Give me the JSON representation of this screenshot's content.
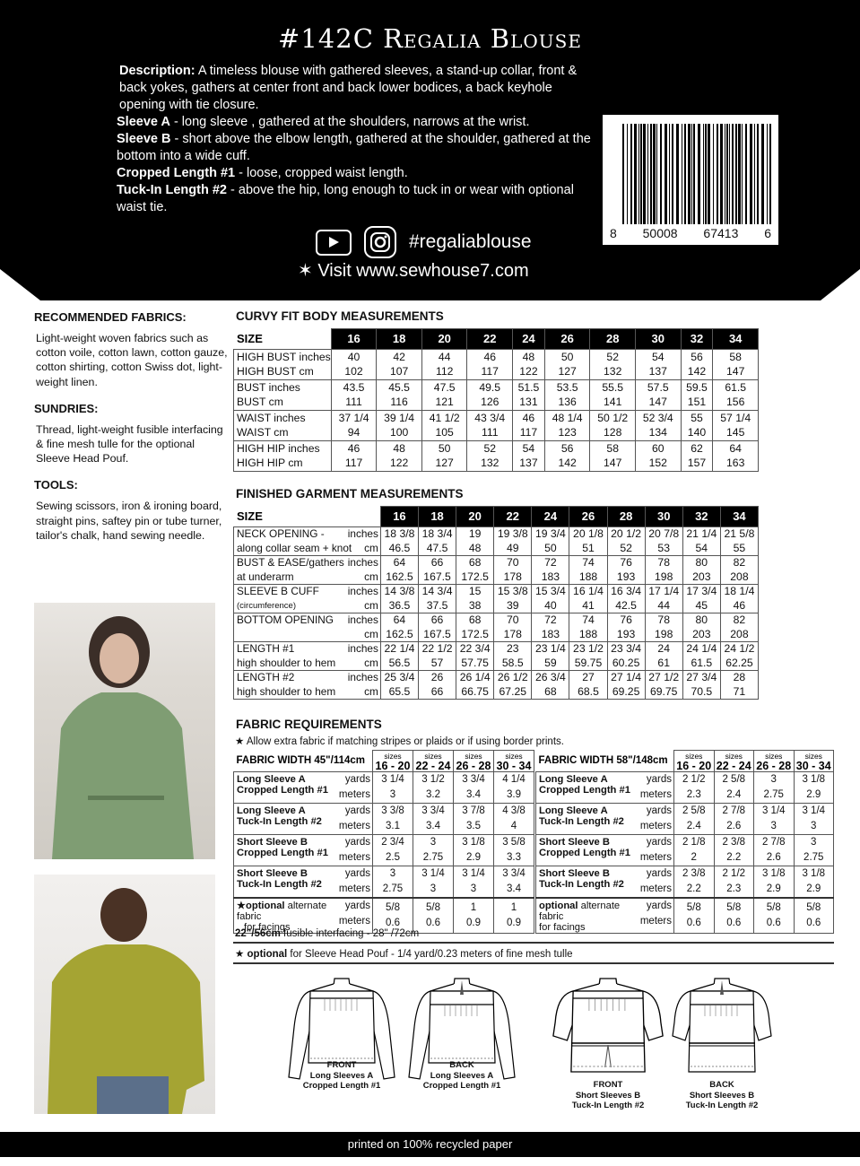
{
  "header": {
    "title": "#142C Regalia Blouse",
    "description": [
      {
        "bold": "Description:",
        "text": " A timeless blouse with gathered sleeves, a stand-up collar, front & back yokes, gathers at center front and back lower bodices, a back keyhole opening with tie closure."
      },
      {
        "bold": "Sleeve A",
        "text": " - long sleeve , gathered at the shoulders, narrows at the wrist."
      },
      {
        "bold": "Sleeve B",
        "text": " - short above the elbow length, gathered at the shoulder, gathered at the bottom into a wide cuff."
      },
      {
        "bold": "Cropped Length #1",
        "text": " - loose, cropped waist length."
      },
      {
        "bold": "Tuck-In Length #2",
        "text": " - above the hip, long enough to tuck in or wear with optional waist tie."
      }
    ],
    "hashtag": "#regaliablouse",
    "visit": "Visit www.sewhouse7.com",
    "icons": [
      "youtube-icon",
      "instagram-icon",
      "star-icon"
    ],
    "barcode": {
      "digits": [
        "8",
        "50008",
        "67413",
        "6"
      ]
    }
  },
  "left": {
    "fabrics_title": "RECOMMENDED FABRICS:",
    "fabrics_text": "Light-weight woven fabrics such as cotton voile, cotton lawn, cotton gauze, cotton shirting, cotton Swiss dot, light-weight linen.",
    "sundries_title": "SUNDRIES:",
    "sundries_text": "Thread, light-weight fusible interfacing & fine mesh tulle for the optional Sleeve Head Pouf.",
    "tools_title": "TOOLS:",
    "tools_text": "Sewing scissors, iron & ironing board, straight pins, saftey pin or tube turner, tailor's chalk, hand sewing needle."
  },
  "body": {
    "title": "CURVY FIT BODY MEASUREMENTS",
    "size_label": "SIZE",
    "sizes": [
      "16",
      "18",
      "20",
      "22",
      "24",
      "26",
      "28",
      "30",
      "32",
      "34"
    ],
    "rows": [
      {
        "labels": [
          "HIGH BUST inches",
          "HIGH BUST cm"
        ],
        "a": [
          "40",
          "42",
          "44",
          "46",
          "48",
          "50",
          "52",
          "54",
          "56",
          "58"
        ],
        "b": [
          "102",
          "107",
          "112",
          "117",
          "122",
          "127",
          "132",
          "137",
          "142",
          "147"
        ]
      },
      {
        "labels": [
          "BUST inches",
          "BUST cm"
        ],
        "a": [
          "43.5",
          "45.5",
          "47.5",
          "49.5",
          "51.5",
          "53.5",
          "55.5",
          "57.5",
          "59.5",
          "61.5"
        ],
        "b": [
          "111",
          "116",
          "121",
          "126",
          "131",
          "136",
          "141",
          "147",
          "151",
          "156"
        ]
      },
      {
        "labels": [
          "WAIST inches",
          "WAIST cm"
        ],
        "a": [
          "37 1/4",
          "39 1/4",
          "41 1/2",
          "43 3/4",
          "46",
          "48 1/4",
          "50 1/2",
          "52 3/4",
          "55",
          "57 1/4"
        ],
        "b": [
          "94",
          "100",
          "105",
          "111",
          "117",
          "123",
          "128",
          "134",
          "140",
          "145"
        ]
      },
      {
        "labels": [
          "HIGH HIP inches",
          "HIGH HIP cm"
        ],
        "a": [
          "46",
          "48",
          "50",
          "52",
          "54",
          "56",
          "58",
          "60",
          "62",
          "64"
        ],
        "b": [
          "117",
          "122",
          "127",
          "132",
          "137",
          "142",
          "147",
          "152",
          "157",
          "163"
        ]
      }
    ]
  },
  "finished": {
    "title": "FINISHED GARMENT MEASUREMENTS",
    "size_label": "SIZE",
    "sizes": [
      "16",
      "18",
      "20",
      "22",
      "24",
      "26",
      "28",
      "30",
      "32",
      "34"
    ],
    "rows": [
      {
        "labels": [
          "NECK OPENING -",
          "along collar seam + knot"
        ],
        "units": [
          "inches",
          "cm"
        ],
        "a": [
          "18 3/8",
          "18 3/4",
          "19",
          "19 3/8",
          "19 3/4",
          "20 1/8",
          "20 1/2",
          "20 7/8",
          "21 1/4",
          "21 5/8"
        ],
        "b": [
          "46.5",
          "47.5",
          "48",
          "49",
          "50",
          "51",
          "52",
          "53",
          "54",
          "55"
        ]
      },
      {
        "labels": [
          "BUST & EASE/gathers",
          "at underarm"
        ],
        "units": [
          "inches",
          "cm"
        ],
        "a": [
          "64",
          "66",
          "68",
          "70",
          "72",
          "74",
          "76",
          "78",
          "80",
          "82"
        ],
        "b": [
          "162.5",
          "167.5",
          "172.5",
          "178",
          "183",
          "188",
          "193",
          "198",
          "203",
          "208"
        ]
      },
      {
        "labels": [
          "SLEEVE B CUFF",
          "(circumference)"
        ],
        "units": [
          "inches",
          "cm"
        ],
        "a": [
          "14 3/8",
          "14 3/4",
          "15",
          "15 3/8",
          "15 3/4",
          "16 1/4",
          "16 3/4",
          "17 1/4",
          "17 3/4",
          "18 1/4"
        ],
        "b": [
          "36.5",
          "37.5",
          "38",
          "39",
          "40",
          "41",
          "42.5",
          "44",
          "45",
          "46"
        ]
      },
      {
        "labels": [
          "BOTTOM OPENING",
          ""
        ],
        "units": [
          "inches",
          "cm"
        ],
        "a": [
          "64",
          "66",
          "68",
          "70",
          "72",
          "74",
          "76",
          "78",
          "80",
          "82"
        ],
        "b": [
          "162.5",
          "167.5",
          "172.5",
          "178",
          "183",
          "188",
          "193",
          "198",
          "203",
          "208"
        ]
      },
      {
        "labels": [
          "LENGTH #1",
          "high shoulder to hem"
        ],
        "units": [
          "inches",
          "cm"
        ],
        "a": [
          "22 1/4",
          "22 1/2",
          "22 3/4",
          "23",
          "23 1/4",
          "23 1/2",
          "23 3/4",
          "24",
          "24 1/4",
          "24 1/2"
        ],
        "b": [
          "56.5",
          "57",
          "57.75",
          "58.5",
          "59",
          "59.75",
          "60.25",
          "61",
          "61.5",
          "62.25"
        ]
      },
      {
        "labels": [
          "LENGTH #2",
          "high shoulder to hem"
        ],
        "units": [
          "inches",
          "cm"
        ],
        "a": [
          "25 3/4",
          "26",
          "26 1/4",
          "26 1/2",
          "26 3/4",
          "27",
          "27 1/4",
          "27 1/2",
          "27 3/4",
          "28"
        ],
        "b": [
          "65.5",
          "66",
          "66.75",
          "67.25",
          "68",
          "68.5",
          "69.25",
          "69.75",
          "70.5",
          "71"
        ]
      }
    ]
  },
  "fabric": {
    "title": "FABRIC REQUIREMENTS",
    "note": "Allow extra fabric if matching stripes or plaids or if using border prints.",
    "sizes_word": "sizes",
    "groups": [
      "16 - 20",
      "22 - 24",
      "26 - 28",
      "30 - 34"
    ],
    "units": [
      "yards",
      "meters"
    ],
    "tables": [
      {
        "width": "FABRIC WIDTH 45\"/114cm",
        "rows": [
          {
            "labels": [
              "Long Sleeve A",
              "Cropped Length #1"
            ],
            "yards": [
              "3 1/4",
              "3 1/2",
              "3 3/4",
              "4 1/4"
            ],
            "meters": [
              "3",
              "3.2",
              "3.4",
              "3.9"
            ]
          },
          {
            "labels": [
              "Long Sleeve A",
              "Tuck-In Length #2"
            ],
            "yards": [
              "3 3/8",
              "3 3/4",
              "3 7/8",
              "4 3/8"
            ],
            "meters": [
              "3.1",
              "3.4",
              "3.5",
              "4"
            ]
          },
          {
            "labels": [
              "Short Sleeve B",
              "Cropped Length #1"
            ],
            "yards": [
              "2 3/4",
              "3",
              "3 1/8",
              "3 5/8"
            ],
            "meters": [
              "2.5",
              "2.75",
              "2.9",
              "3.3"
            ]
          },
          {
            "labels": [
              "Short Sleeve B",
              "Tuck-In Length #2"
            ],
            "yards": [
              "3",
              "3 1/4",
              "3 1/4",
              "3 3/4"
            ],
            "meters": [
              "2.75",
              "3",
              "3",
              "3.4"
            ]
          },
          {
            "optional": true,
            "labels": [
              "optional",
              " alternate fabric",
              "for facings"
            ],
            "yards": [
              "5/8",
              "5/8",
              "1",
              "1"
            ],
            "meters": [
              "0.6",
              "0.6",
              "0.9",
              "0.9"
            ]
          }
        ]
      },
      {
        "width": "FABRIC WIDTH 58\"/148cm",
        "rows": [
          {
            "labels": [
              "Long Sleeve A",
              "Cropped Length #1"
            ],
            "yards": [
              "2 1/2",
              "2 5/8",
              "3",
              "3 1/8"
            ],
            "meters": [
              "2.3",
              "2.4",
              "2.75",
              "2.9"
            ]
          },
          {
            "labels": [
              "Long Sleeve A",
              "Tuck-In Length #2"
            ],
            "yards": [
              "2 5/8",
              "2 7/8",
              "3 1/4",
              "3 1/4"
            ],
            "meters": [
              "2.4",
              "2.6",
              "3",
              "3"
            ]
          },
          {
            "labels": [
              "Short Sleeve B",
              "Cropped Length #1"
            ],
            "yards": [
              "2 1/8",
              "2 3/8",
              "2 7/8",
              "3"
            ],
            "meters": [
              "2",
              "2.2",
              "2.6",
              "2.75"
            ]
          },
          {
            "labels": [
              "Short Sleeve B",
              "Tuck-In Length #2"
            ],
            "yards": [
              "2 3/8",
              "2 1/2",
              "3 1/8",
              "3 1/8"
            ],
            "meters": [
              "2.2",
              "2.3",
              "2.9",
              "2.9"
            ]
          },
          {
            "optional": true,
            "labels": [
              "optional",
              " alternate fabric",
              "for facings"
            ],
            "yards": [
              "5/8",
              "5/8",
              "5/8",
              "5/8"
            ],
            "meters": [
              "0.6",
              "0.6",
              "0.6",
              "0.6"
            ]
          }
        ]
      }
    ],
    "interfacing_bold": "22\"/56cm",
    "interfacing_text": " fusible interfacing - 28\" /72cm",
    "pouf_bold": "optional",
    "pouf_text": " for Sleeve Head Pouf - 1/4 yard/0.23 meters of fine mesh tulle"
  },
  "illustrations": [
    {
      "lines": [
        "FRONT",
        "Long Sleeves A",
        "Cropped Length #1"
      ]
    },
    {
      "lines": [
        "BACK",
        "Long Sleeves A",
        "Cropped Length #1"
      ]
    },
    {
      "lines": [
        "FRONT",
        "Short Sleeves B",
        "Tuck-In Length #2"
      ]
    },
    {
      "lines": [
        "BACK",
        "Short Sleeves B",
        "Tuck-In Length #2"
      ]
    }
  ],
  "footer": "printed on 100% recycled paper"
}
